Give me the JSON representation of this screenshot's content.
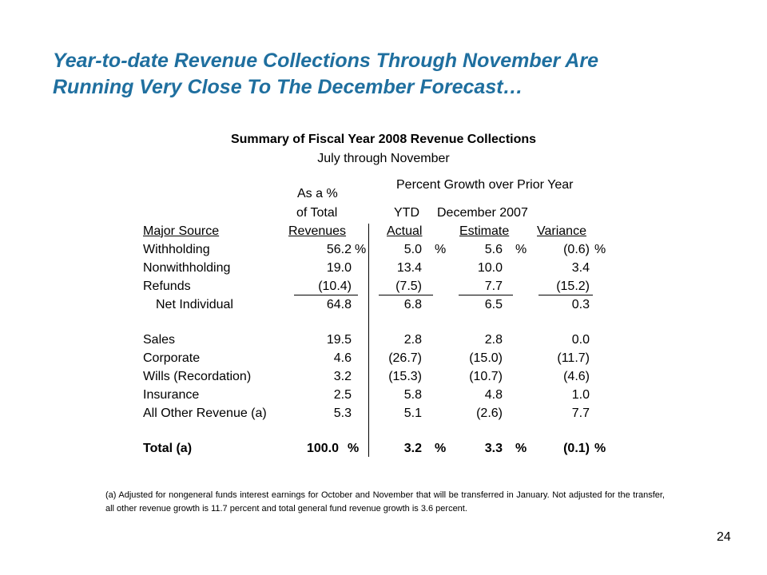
{
  "slide_title": {
    "line1": "Year-to-date Revenue Collections Through November Are",
    "line2": "Running Very Close To The December Forecast…"
  },
  "table": {
    "title": "Summary of Fiscal Year 2008 Revenue Collections",
    "subtitle": "July through November",
    "headers": {
      "as_a_pct": "As a %",
      "of_total": "of Total",
      "growth_group": "Percent Growth over Prior Year",
      "ytd": "YTD",
      "december": "December 2007",
      "col_source": "Major Source",
      "col_revenues": "Revenues",
      "col_actual": "Actual",
      "col_estimate": "Estimate",
      "col_variance": "Variance"
    },
    "pct_sign": "%",
    "rows": [
      {
        "source": "Withholding",
        "revenues": "56.2",
        "actual": "5.0",
        "estimate": "5.6",
        "variance": "(0.6)"
      },
      {
        "source": "Nonwithholding",
        "revenues": "19.0",
        "actual": "13.4",
        "estimate": "10.0",
        "variance": "3.4"
      },
      {
        "source": "Refunds",
        "revenues": "(10.4)",
        "actual": "(7.5)",
        "estimate": "7.7",
        "variance": "(15.2)"
      },
      {
        "source": "Net Individual",
        "revenues": "64.8",
        "actual": "6.8",
        "estimate": "6.5",
        "variance": "0.3"
      },
      {
        "source": "Sales",
        "revenues": "19.5",
        "actual": "2.8",
        "estimate": "2.8",
        "variance": "0.0"
      },
      {
        "source": "Corporate",
        "revenues": "4.6",
        "actual": "(26.7)",
        "estimate": "(15.0)",
        "variance": "(11.7)"
      },
      {
        "source": "Wills (Recordation)",
        "revenues": "3.2",
        "actual": "(15.3)",
        "estimate": "(10.7)",
        "variance": "(4.6)"
      },
      {
        "source": "Insurance",
        "revenues": "2.5",
        "actual": "5.8",
        "estimate": "4.8",
        "variance": "1.0"
      },
      {
        "source": "All Other Revenue (a)",
        "revenues": "5.3",
        "actual": "5.1",
        "estimate": "(2.6)",
        "variance": "7.7"
      },
      {
        "source": "Total (a)",
        "revenues": "100.0",
        "actual": "3.2",
        "estimate": "3.3",
        "variance": "(0.1)"
      }
    ]
  },
  "footnote": "(a) Adjusted for nongeneral funds interest earnings for October and November that will be transferred in January.  Not adjusted for the transfer, all other revenue growth is 11.7 percent and total general fund revenue growth is 3.6 percent.",
  "page_number": "24",
  "colors": {
    "title": "#1f6f9f",
    "text": "#000000"
  }
}
